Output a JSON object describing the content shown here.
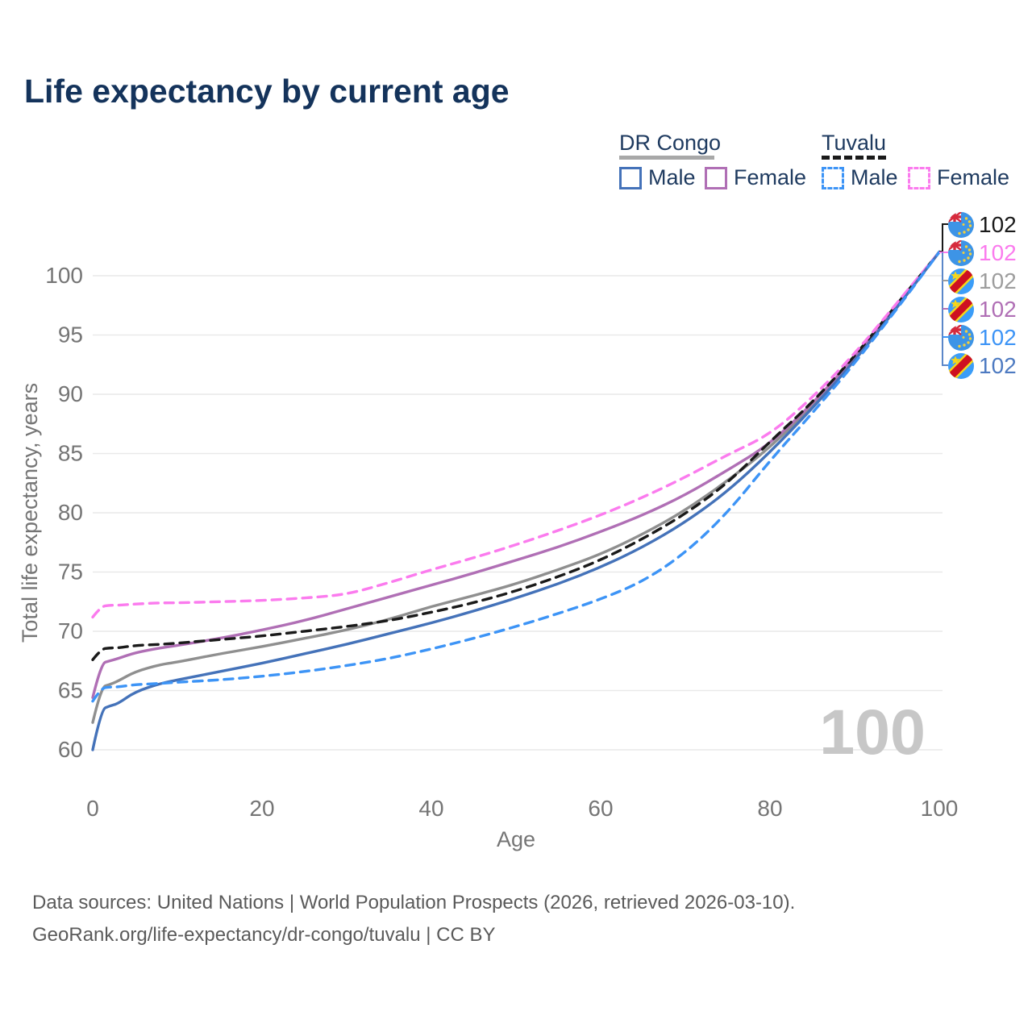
{
  "title": "Life expectancy by current age",
  "legend": {
    "drc": {
      "country": "DR Congo",
      "underline_color": "#a8a8a8",
      "male_label": "Male",
      "female_label": "Female",
      "male_color": "#4d7ac1",
      "female_color": "#b06fb5"
    },
    "tuvalu": {
      "country": "Tuvalu",
      "underline_color": "#1a1a1a",
      "male_label": "Male",
      "female_label": "Female",
      "male_color": "#3d94f6",
      "female_color": "#fb7bee"
    }
  },
  "watermark": "100",
  "footer": {
    "line1": "Data sources: United Nations | World Population Prospects (2026, retrieved 2026-03-10).",
    "line2": "GeoRank.org/life-expectancy/dr-congo/tuvalu | CC BY"
  },
  "chart_data": {
    "type": "line",
    "title": "Life expectancy by current age",
    "xlabel": "Age",
    "ylabel": "Total life expectancy, years",
    "xlim": [
      0,
      100
    ],
    "ylim": [
      60,
      102
    ],
    "x_ticks": [
      0,
      20,
      40,
      60,
      80,
      100
    ],
    "y_ticks": [
      60,
      65,
      70,
      75,
      80,
      85,
      90,
      95,
      100
    ],
    "grid": "horizontal",
    "legend_position": "top-right",
    "x": [
      0,
      1,
      2,
      3,
      5,
      8,
      10,
      15,
      20,
      25,
      30,
      35,
      40,
      45,
      50,
      55,
      60,
      65,
      70,
      75,
      80,
      85,
      90,
      95,
      100
    ],
    "series": [
      {
        "name": "DR Congo Both sexes",
        "country": "DR Congo",
        "sex": "both",
        "color": "#8f8f8f",
        "dash": null,
        "values": [
          62.3,
          65.3,
          65.5,
          65.8,
          66.6,
          67.2,
          67.4,
          68.1,
          68.7,
          69.4,
          70.1,
          71.0,
          72.1,
          73.0,
          74.0,
          75.2,
          76.5,
          78.2,
          80.2,
          82.7,
          85.5,
          89.0,
          92.9,
          97.4,
          102
        ],
        "end_label": "102"
      },
      {
        "name": "DR Congo Female",
        "country": "DR Congo",
        "sex": "female",
        "color": "#b06fb5",
        "dash": null,
        "values": [
          64.4,
          67.3,
          67.5,
          67.7,
          68.2,
          68.6,
          68.8,
          69.4,
          70.1,
          70.9,
          71.9,
          72.9,
          73.9,
          74.9,
          76.0,
          77.1,
          78.4,
          79.8,
          81.5,
          83.6,
          85.8,
          89.2,
          93.1,
          97.5,
          102
        ],
        "end_label": "102"
      },
      {
        "name": "Tuvalu Both sexes",
        "country": "Tuvalu",
        "sex": "both",
        "color": "#1a1a1a",
        "dash": [
          11,
          8
        ],
        "values": [
          67.6,
          68.5,
          68.6,
          68.6,
          68.8,
          68.9,
          69.0,
          69.3,
          69.6,
          70.0,
          70.4,
          70.9,
          71.6,
          72.4,
          73.4,
          74.6,
          76.0,
          77.8,
          79.9,
          82.5,
          86.0,
          89.3,
          93.2,
          97.6,
          102
        ],
        "end_label": "102"
      },
      {
        "name": "Tuvalu Female",
        "country": "Tuvalu",
        "sex": "female",
        "color": "#fb7bee",
        "dash": [
          11,
          8
        ],
        "values": [
          71.2,
          72.1,
          72.2,
          72.2,
          72.3,
          72.4,
          72.4,
          72.5,
          72.6,
          72.8,
          73.1,
          74.1,
          75.2,
          76.2,
          77.3,
          78.5,
          79.8,
          81.3,
          83.0,
          84.9,
          86.6,
          89.7,
          93.4,
          97.7,
          102
        ],
        "end_label": "102"
      },
      {
        "name": "DR Congo Male",
        "country": "DR Congo",
        "sex": "male",
        "color": "#4472b9",
        "dash": null,
        "values": [
          60.0,
          63.4,
          63.7,
          63.9,
          64.9,
          65.6,
          65.9,
          66.6,
          67.3,
          68.1,
          68.9,
          69.8,
          70.7,
          71.7,
          72.8,
          74.0,
          75.4,
          77.1,
          79.2,
          81.8,
          85.1,
          88.8,
          92.8,
          97.3,
          102
        ],
        "end_label": "102"
      },
      {
        "name": "Tuvalu Male",
        "country": "Tuvalu",
        "sex": "male",
        "color": "#3d94f6",
        "dash": [
          11,
          8
        ],
        "values": [
          64.1,
          65.2,
          65.3,
          65.3,
          65.5,
          65.6,
          65.7,
          65.9,
          66.2,
          66.6,
          67.1,
          67.7,
          68.5,
          69.4,
          70.4,
          71.5,
          72.7,
          74.2,
          76.6,
          80.0,
          84.4,
          88.4,
          92.6,
          97.2,
          102
        ],
        "end_label": "102"
      }
    ]
  },
  "annotations": {
    "rows": [
      {
        "flag": "tuvalu",
        "value": "102",
        "color": "#1a1a1a",
        "series": "Tuvalu Both sexes"
      },
      {
        "flag": "tuvalu",
        "value": "102",
        "color": "#fb7bee",
        "series": "Tuvalu Female"
      },
      {
        "flag": "drc",
        "value": "102",
        "color": "#9d9d9d",
        "series": "DR Congo Both sexes"
      },
      {
        "flag": "drc",
        "value": "102",
        "color": "#b06fb5",
        "series": "DR Congo Female"
      },
      {
        "flag": "tuvalu",
        "value": "102",
        "color": "#3d94f6",
        "series": "Tuvalu Male"
      },
      {
        "flag": "drc",
        "value": "102",
        "color": "#4d7ac1",
        "series": "DR Congo Male"
      }
    ]
  }
}
